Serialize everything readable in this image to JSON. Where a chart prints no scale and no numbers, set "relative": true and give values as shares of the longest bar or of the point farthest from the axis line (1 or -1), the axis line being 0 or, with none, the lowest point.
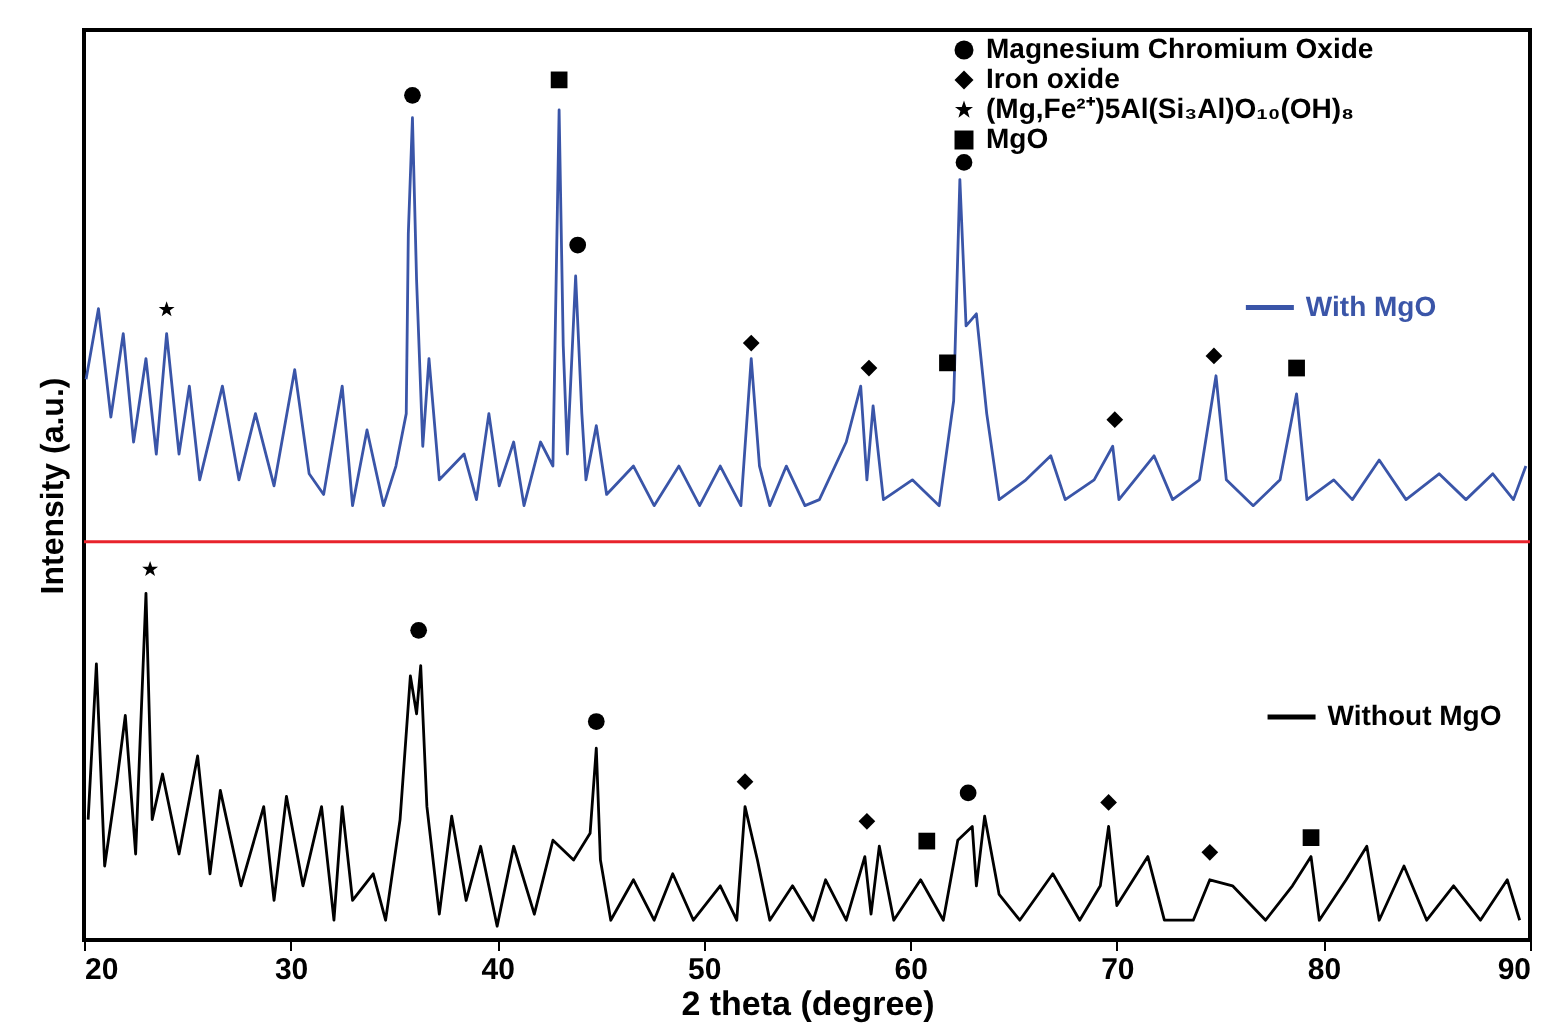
{
  "chart_data": {
    "type": "line",
    "relative": true,
    "xlabel": "2 theta (degree)",
    "ylabel": "Intensity (a.u.)",
    "xlim": [
      20,
      90
    ],
    "xticks": [
      20,
      30,
      40,
      50,
      60,
      70,
      80,
      90
    ],
    "legend": "top right",
    "grid": false,
    "ref_lines": [
      {
        "axis": "y",
        "value": 0.463,
        "color": "#e8232b"
      }
    ],
    "series": [
      {
        "name": "With MgO",
        "type": "line",
        "color": "#3a55a8",
        "x": [
          20.1,
          20.7,
          21.3,
          21.9,
          22.4,
          23.0,
          23.5,
          24.0,
          24.6,
          25.1,
          25.6,
          26.7,
          27.5,
          28.3,
          29.2,
          30.2,
          30.9,
          31.6,
          32.5,
          33.0,
          33.7,
          34.5,
          35.1,
          35.6,
          35.7,
          35.9,
          36.1,
          36.4,
          36.7,
          37.2,
          38.4,
          39.0,
          39.6,
          40.1,
          40.8,
          41.3,
          42.1,
          42.7,
          43.0,
          43.2,
          43.4,
          43.8,
          44.1,
          44.3,
          44.8,
          45.3,
          46.6,
          47.6,
          48.8,
          49.8,
          50.8,
          51.8,
          52.3,
          52.7,
          53.2,
          54.0,
          54.9,
          55.6,
          56.9,
          57.6,
          57.9,
          58.2,
          58.7,
          60.1,
          61.4,
          62.1,
          62.4,
          62.7,
          63.2,
          63.7,
          64.3,
          65.6,
          66.8,
          67.5,
          68.9,
          69.8,
          70.1,
          71.8,
          72.7,
          74.0,
          74.8,
          75.3,
          76.6,
          77.9,
          78.7,
          79.2,
          80.5,
          81.4,
          82.7,
          84.0,
          85.6,
          86.9,
          88.2,
          89.2,
          89.8
        ],
        "values": [
          0.652,
          0.734,
          0.608,
          0.705,
          0.579,
          0.676,
          0.565,
          0.705,
          0.565,
          0.644,
          0.535,
          0.644,
          0.535,
          0.612,
          0.528,
          0.663,
          0.542,
          0.518,
          0.644,
          0.505,
          0.593,
          0.505,
          0.551,
          0.612,
          0.821,
          0.956,
          0.767,
          0.574,
          0.676,
          0.535,
          0.565,
          0.512,
          0.612,
          0.528,
          0.579,
          0.505,
          0.579,
          0.551,
          0.965,
          0.691,
          0.565,
          0.772,
          0.612,
          0.535,
          0.598,
          0.518,
          0.551,
          0.505,
          0.551,
          0.505,
          0.551,
          0.505,
          0.676,
          0.551,
          0.505,
          0.551,
          0.505,
          0.512,
          0.579,
          0.644,
          0.535,
          0.621,
          0.512,
          0.535,
          0.505,
          0.627,
          0.884,
          0.714,
          0.728,
          0.612,
          0.512,
          0.535,
          0.563,
          0.512,
          0.535,
          0.574,
          0.512,
          0.563,
          0.512,
          0.535,
          0.656,
          0.535,
          0.505,
          0.535,
          0.635,
          0.512,
          0.535,
          0.512,
          0.558,
          0.512,
          0.542,
          0.512,
          0.542,
          0.512,
          0.551
        ]
      },
      {
        "name": "Without MgO",
        "type": "line",
        "color": "#000000",
        "x": [
          20.2,
          20.6,
          21.0,
          21.6,
          22.0,
          22.5,
          23.0,
          23.3,
          23.8,
          24.6,
          25.5,
          26.1,
          26.6,
          27.6,
          28.7,
          29.2,
          29.8,
          30.6,
          31.5,
          32.1,
          32.5,
          33.0,
          34.0,
          34.6,
          35.3,
          35.8,
          36.1,
          36.3,
          36.6,
          37.2,
          37.8,
          38.5,
          39.2,
          40.0,
          40.8,
          41.8,
          42.7,
          43.7,
          44.5,
          44.8,
          45.0,
          45.5,
          46.6,
          47.6,
          48.5,
          49.5,
          50.8,
          51.6,
          52.0,
          52.6,
          53.2,
          54.3,
          55.3,
          55.9,
          56.9,
          57.8,
          58.1,
          58.5,
          59.2,
          60.5,
          61.6,
          62.3,
          63.0,
          63.2,
          63.6,
          64.3,
          65.3,
          66.9,
          68.2,
          69.2,
          69.6,
          70.0,
          71.5,
          72.3,
          73.7,
          74.5,
          75.6,
          77.2,
          78.5,
          79.4,
          79.8,
          81.1,
          82.1,
          82.7,
          83.9,
          85.0,
          86.3,
          87.6,
          88.9,
          89.5
        ],
        "values": [
          0.14,
          0.321,
          0.086,
          0.186,
          0.261,
          0.1,
          0.403,
          0.14,
          0.193,
          0.1,
          0.214,
          0.077,
          0.174,
          0.063,
          0.155,
          0.046,
          0.167,
          0.063,
          0.155,
          0.023,
          0.155,
          0.046,
          0.077,
          0.023,
          0.14,
          0.307,
          0.263,
          0.319,
          0.155,
          0.03,
          0.144,
          0.046,
          0.109,
          0.016,
          0.109,
          0.03,
          0.116,
          0.093,
          0.124,
          0.223,
          0.093,
          0.023,
          0.07,
          0.023,
          0.077,
          0.023,
          0.063,
          0.023,
          0.155,
          0.093,
          0.023,
          0.063,
          0.023,
          0.07,
          0.023,
          0.097,
          0.03,
          0.109,
          0.023,
          0.07,
          0.023,
          0.116,
          0.132,
          0.063,
          0.144,
          0.053,
          0.023,
          0.077,
          0.023,
          0.063,
          0.132,
          0.04,
          0.097,
          0.023,
          0.023,
          0.07,
          0.063,
          0.023,
          0.063,
          0.097,
          0.023,
          0.07,
          0.109,
          0.023,
          0.086,
          0.023,
          0.063,
          0.023,
          0.07,
          0.023
        ]
      },
      {
        "name": "Magnesium Chromium Oxide",
        "type": "scatter",
        "marker": "circle",
        "color": "#000000",
        "x": [
          35.9,
          43.9,
          62.6,
          36.2,
          44.8,
          62.8
        ],
        "values": [
          0.982,
          0.808,
          0.904,
          0.36,
          0.254,
          0.171
        ]
      },
      {
        "name": "Iron oxide",
        "type": "scatter",
        "marker": "diamond",
        "color": "#000000",
        "x": [
          52.3,
          58.0,
          69.9,
          74.7,
          52.0,
          57.9,
          69.6,
          74.5
        ],
        "values": [
          0.694,
          0.665,
          0.605,
          0.679,
          0.184,
          0.138,
          0.16,
          0.102
        ]
      },
      {
        "name": "(Mg,Fe²⁺)5Al(Si₃Al)O₁₀(OH)₈",
        "type": "scatter",
        "marker": "star",
        "color": "#000000",
        "x": [
          24.0,
          23.2
        ],
        "values": [
          0.733,
          0.431
        ]
      },
      {
        "name": "MgO",
        "type": "scatter",
        "marker": "square",
        "color": "#000000",
        "x": [
          43.0,
          61.8,
          78.7,
          60.8,
          79.4
        ],
        "values": [
          1,
          0.671,
          0.665,
          0.115,
          0.119
        ]
      }
    ]
  }
}
